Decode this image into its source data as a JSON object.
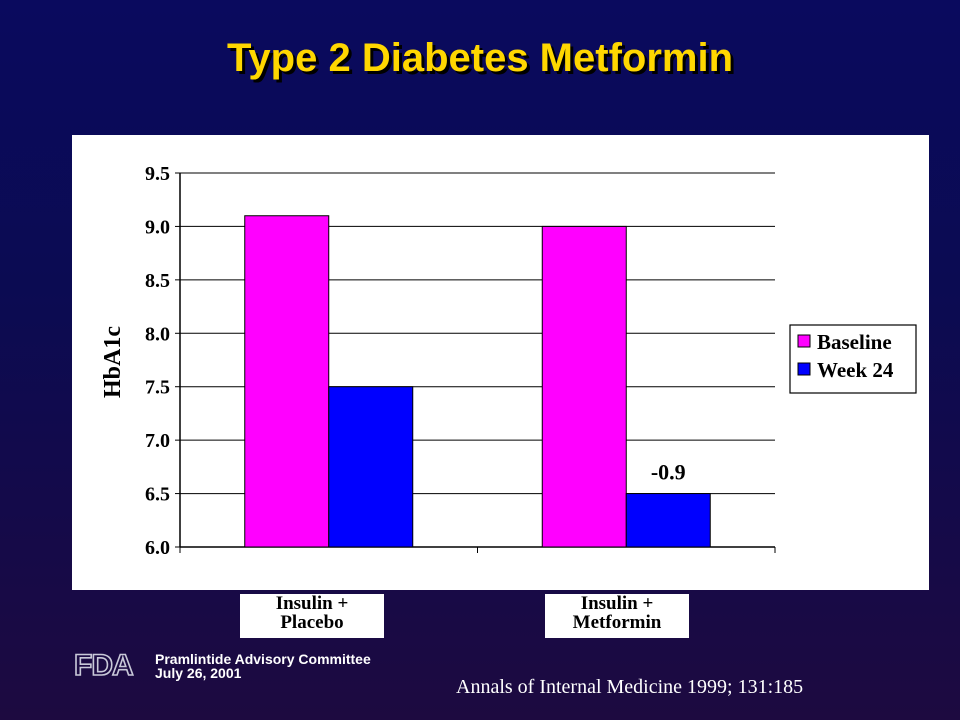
{
  "slide": {
    "title": "Type 2 Diabetes Metformin",
    "footer_line1": "Pramlintide Advisory Committee",
    "footer_line2": "July 26, 2001",
    "citation": "Annals of Internal Medicine 1999; 131:185",
    "logo_text": "FDA"
  },
  "colors": {
    "title": "#ffd700",
    "baseline": "#ff00ff",
    "week24": "#0000ff",
    "background": "#0a0a5e"
  },
  "chart_data": {
    "type": "bar",
    "categories": [
      [
        "Insulin +",
        "Placebo"
      ],
      [
        "Insulin +",
        "Metformin"
      ]
    ],
    "series": [
      {
        "name": "Baseline",
        "values": [
          9.1,
          9.0
        ]
      },
      {
        "name": "Week 24",
        "values": [
          7.5,
          6.5
        ]
      }
    ],
    "ylabel": "HbA1c",
    "ylim": [
      6.0,
      9.5
    ],
    "yticks": [
      "6.0",
      "6.5",
      "7.0",
      "7.5",
      "8.0",
      "8.5",
      "9.0",
      "9.5"
    ],
    "annotations": [
      {
        "text": "-0.9",
        "category": 1,
        "series": 1
      }
    ],
    "grid": true,
    "legend": "right"
  }
}
